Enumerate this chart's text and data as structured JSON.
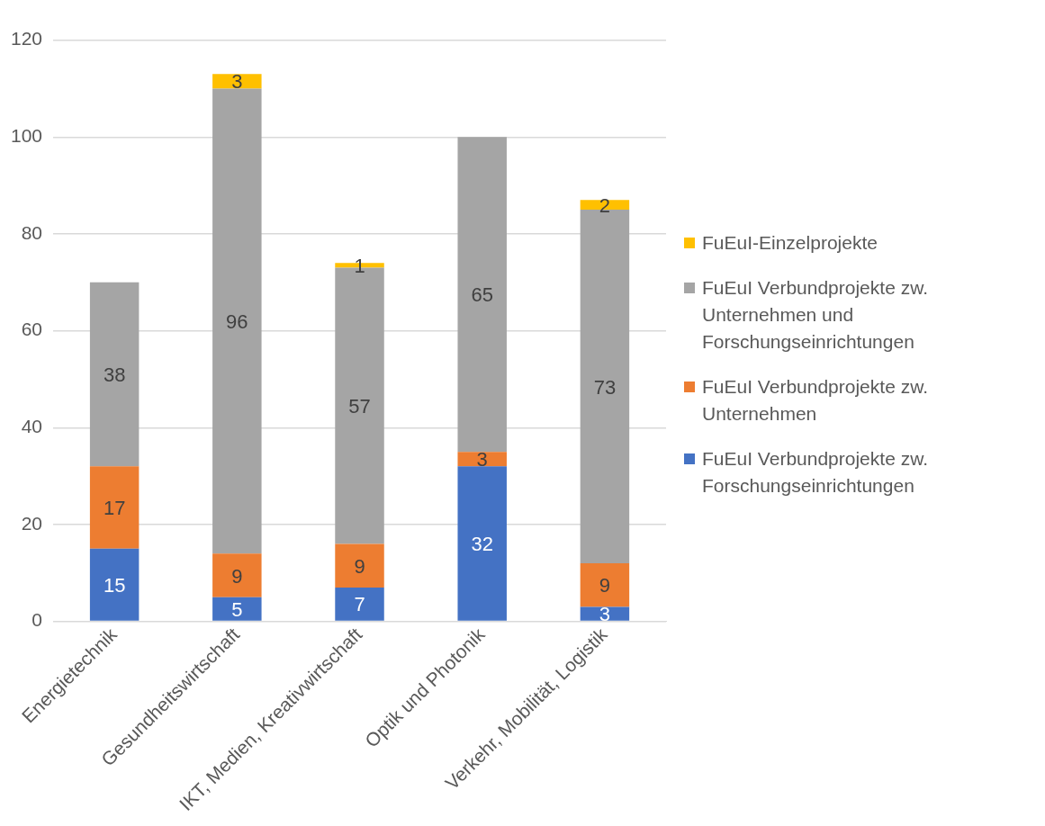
{
  "chart_data": {
    "type": "bar",
    "stacked": true,
    "categories": [
      "Energietechnik",
      "Gesundheitswirtschaft",
      "IKT, Medien, Kreativwirtschaft",
      "Optik und Photonik",
      "Verkehr, Mobilität, Logistik"
    ],
    "series": [
      {
        "name": "FuEuI Verbundprojekte zw. Forschungseinrichtungen",
        "color": "#4472c4",
        "values": [
          15,
          5,
          7,
          32,
          3
        ]
      },
      {
        "name": "FuEuI Verbundprojekte zw. Unternehmen",
        "color": "#ed7d31",
        "values": [
          17,
          9,
          9,
          3,
          9
        ]
      },
      {
        "name": "FuEuI Verbundprojekte zw. Unternehmen und Forschungseinrichtungen",
        "color": "#a5a5a5",
        "values": [
          38,
          96,
          57,
          65,
          73
        ]
      },
      {
        "name": "FuEuI-Einzelprojekte",
        "color": "#ffc000",
        "values": [
          null,
          3,
          1,
          null,
          2
        ]
      }
    ],
    "ylim": [
      0,
      120
    ],
    "yticks": [
      0,
      20,
      40,
      60,
      80,
      100,
      120
    ],
    "grid": "y",
    "legend": "right",
    "data_labels": true
  }
}
